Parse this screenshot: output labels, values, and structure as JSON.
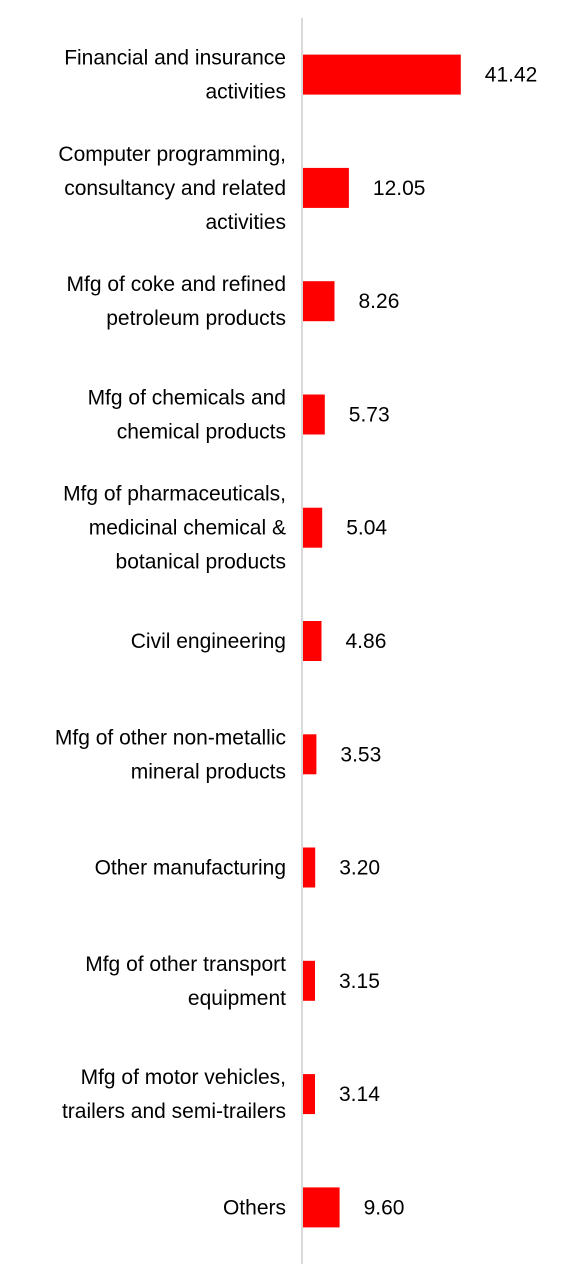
{
  "chart_data": {
    "type": "bar",
    "orientation": "horizontal",
    "title": "",
    "xlabel": "",
    "ylabel": "",
    "xlim": [
      0,
      42
    ],
    "grid": false,
    "legend": "none",
    "bar_color": "#ff0000",
    "axis_color": "#d9d9d9",
    "categories": [
      [
        "Financial and insurance",
        "activities"
      ],
      [
        "Computer programming,",
        "consultancy and related",
        "activities"
      ],
      [
        "Mfg of coke and refined",
        "petroleum products"
      ],
      [
        "Mfg of chemicals and",
        "chemical products"
      ],
      [
        "Mfg of pharmaceuticals,",
        "medicinal chemical &",
        "botanical products"
      ],
      [
        "Civil engineering"
      ],
      [
        "Mfg of other non-metallic",
        "mineral products"
      ],
      [
        "Other manufacturing"
      ],
      [
        "Mfg of other transport",
        "equipment"
      ],
      [
        "Mfg of motor vehicles,",
        "trailers and semi-trailers"
      ],
      [
        "Others"
      ]
    ],
    "values": [
      41.42,
      12.05,
      8.26,
      5.73,
      5.04,
      4.86,
      3.53,
      3.2,
      3.15,
      3.14,
      9.6
    ],
    "value_labels": [
      "41.42",
      "12.05",
      "8.26",
      "5.73",
      "5.04",
      "4.86",
      "3.53",
      "3.20",
      "3.15",
      "3.14",
      "9.60"
    ]
  }
}
